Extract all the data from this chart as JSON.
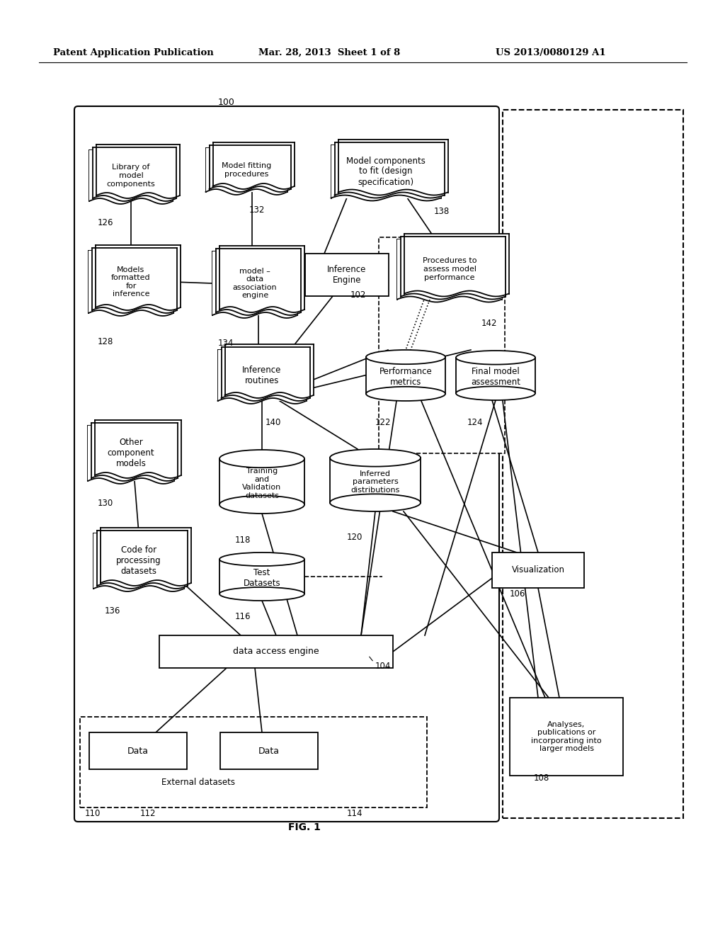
{
  "bg_color": "#ffffff",
  "header_text": "Patent Application Publication",
  "header_date": "Mar. 28, 2013  Sheet 1 of 8",
  "header_patent": "US 2013/0080129 A1",
  "fig_label": "FIG. 1"
}
